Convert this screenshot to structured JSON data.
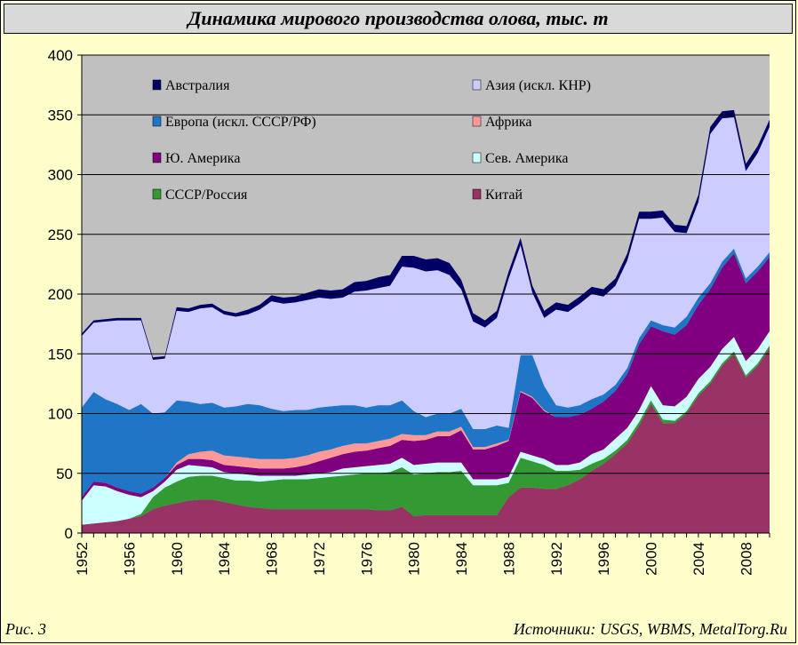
{
  "figure": {
    "label": "Рис. 3",
    "sources": "Источники: USGS, WBMS, MetalTorg.Ru"
  },
  "colors": {
    "page_bg": "#ffffcc",
    "plot_bg": "#c0c0c0",
    "title_bg": "#d9d9d9"
  },
  "chart_data": {
    "type": "area",
    "stacked": true,
    "title": "Динамика мирового производства олова, тыс. т",
    "xlabel": "",
    "ylabel": "",
    "ylim": [
      0,
      400
    ],
    "yticks": [
      0,
      50,
      100,
      150,
      200,
      250,
      300,
      350,
      400
    ],
    "xticks": [
      1952,
      1956,
      1960,
      1964,
      1968,
      1972,
      1976,
      1980,
      1984,
      1988,
      1992,
      1996,
      2000,
      2004,
      2008
    ],
    "xlim": [
      1952,
      2010
    ],
    "grid": true,
    "legend_position": "top (inside plot, two columns)",
    "x": [
      1952,
      1953,
      1954,
      1955,
      1956,
      1957,
      1958,
      1959,
      1960,
      1961,
      1962,
      1963,
      1964,
      1965,
      1966,
      1967,
      1968,
      1969,
      1970,
      1971,
      1972,
      1973,
      1974,
      1975,
      1976,
      1977,
      1978,
      1979,
      1980,
      1981,
      1982,
      1983,
      1984,
      1985,
      1986,
      1987,
      1988,
      1989,
      1990,
      1991,
      1992,
      1993,
      1994,
      1995,
      1996,
      1997,
      1998,
      1999,
      2000,
      2001,
      2002,
      2003,
      2004,
      2005,
      2006,
      2007,
      2008,
      2009,
      2010
    ],
    "series": [
      {
        "name": "Китай",
        "color": "#993366",
        "values": [
          7,
          8,
          9,
          10,
          12,
          14,
          20,
          23,
          25,
          27,
          28,
          28,
          26,
          24,
          22,
          21,
          20,
          20,
          20,
          20,
          20,
          20,
          20,
          20,
          20,
          19,
          19,
          22,
          14,
          15,
          15,
          15,
          15,
          15,
          15,
          15,
          30,
          38,
          38,
          37,
          37,
          40,
          45,
          52,
          58,
          66,
          75,
          90,
          108,
          92,
          92,
          100,
          115,
          125,
          140,
          150,
          130,
          140,
          155
        ]
      },
      {
        "name": "СССР/Россия",
        "color": "#339933",
        "values": [
          0,
          0,
          0,
          0,
          0,
          2,
          10,
          15,
          18,
          20,
          20,
          20,
          20,
          20,
          22,
          22,
          24,
          25,
          25,
          25,
          26,
          27,
          28,
          29,
          30,
          31,
          32,
          33,
          35,
          35,
          36,
          36,
          37,
          25,
          25,
          25,
          12,
          25,
          22,
          20,
          15,
          12,
          8,
          6,
          4,
          3,
          3,
          3,
          3,
          3,
          2,
          2,
          2,
          2,
          2,
          2,
          2,
          2,
          2
        ]
      },
      {
        "name": "Сев. Америка",
        "color": "#ccffff",
        "values": [
          20,
          32,
          30,
          25,
          20,
          14,
          5,
          5,
          10,
          10,
          8,
          7,
          5,
          6,
          5,
          5,
          4,
          3,
          3,
          4,
          4,
          4,
          6,
          6,
          6,
          7,
          7,
          8,
          8,
          8,
          8,
          8,
          7,
          5,
          5,
          5,
          5,
          5,
          5,
          5,
          5,
          5,
          6,
          8,
          8,
          10,
          10,
          10,
          12,
          12,
          12,
          12,
          12,
          12,
          12,
          12,
          12,
          12,
          12
        ]
      },
      {
        "name": "Ю. Америка",
        "color": "#800080",
        "values": [
          3,
          3,
          3,
          3,
          3,
          3,
          3,
          3,
          4,
          5,
          6,
          6,
          6,
          6,
          6,
          6,
          6,
          6,
          7,
          8,
          10,
          12,
          12,
          13,
          13,
          14,
          15,
          15,
          20,
          20,
          22,
          22,
          27,
          25,
          25,
          28,
          30,
          50,
          48,
          40,
          40,
          40,
          40,
          38,
          40,
          40,
          45,
          55,
          50,
          62,
          60,
          60,
          62,
          65,
          68,
          70,
          65,
          65,
          62
        ]
      },
      {
        "name": "Африка",
        "color": "#ff9999",
        "values": [
          0,
          0,
          0,
          0,
          0,
          0,
          0,
          0,
          2,
          4,
          6,
          8,
          8,
          8,
          8,
          8,
          8,
          8,
          8,
          8,
          8,
          7,
          7,
          7,
          6,
          6,
          6,
          5,
          5,
          4,
          4,
          4,
          3,
          2,
          2,
          2,
          1,
          1,
          1,
          1,
          0,
          0,
          0,
          0,
          0,
          0,
          0,
          0,
          0,
          0,
          0,
          0,
          0,
          0,
          0,
          0,
          0,
          0,
          0
        ]
      },
      {
        "name": "Европа (искл. СССР/РФ)",
        "color": "#1f75c6",
        "values": [
          75,
          75,
          70,
          70,
          68,
          75,
          62,
          55,
          52,
          44,
          40,
          40,
          40,
          42,
          45,
          45,
          42,
          40,
          40,
          38,
          37,
          36,
          34,
          32,
          30,
          30,
          28,
          28,
          20,
          15,
          15,
          15,
          15,
          15,
          15,
          15,
          10,
          30,
          35,
          20,
          10,
          8,
          8,
          8,
          6,
          5,
          5,
          5,
          5,
          5,
          6,
          7,
          6,
          5,
          5,
          4,
          4,
          4,
          4
        ]
      },
      {
        "name": "Азия (искл. КНР)",
        "color": "#ccccff",
        "values": [
          60,
          58,
          65,
          70,
          75,
          70,
          45,
          45,
          75,
          75,
          80,
          80,
          78,
          75,
          75,
          80,
          90,
          90,
          90,
          92,
          92,
          90,
          90,
          95,
          98,
          98,
          100,
          112,
          120,
          122,
          120,
          116,
          100,
          90,
          85,
          90,
          125,
          92,
          52,
          57,
          80,
          80,
          85,
          88,
          82,
          83,
          90,
          100,
          85,
          90,
          80,
          70,
          80,
          125,
          120,
          110,
          90,
          95,
          105
        ]
      },
      {
        "name": "Австралия",
        "color": "#000066",
        "values": [
          2,
          2,
          2,
          2,
          2,
          2,
          2,
          2,
          3,
          3,
          3,
          3,
          3,
          3,
          4,
          4,
          5,
          5,
          5,
          6,
          7,
          7,
          7,
          8,
          8,
          9,
          9,
          9,
          10,
          10,
          10,
          10,
          8,
          7,
          6,
          6,
          6,
          6,
          6,
          6,
          6,
          6,
          6,
          6,
          6,
          6,
          6,
          6,
          6,
          6,
          6,
          6,
          6,
          6,
          6,
          6,
          6,
          6,
          6
        ]
      }
    ]
  }
}
